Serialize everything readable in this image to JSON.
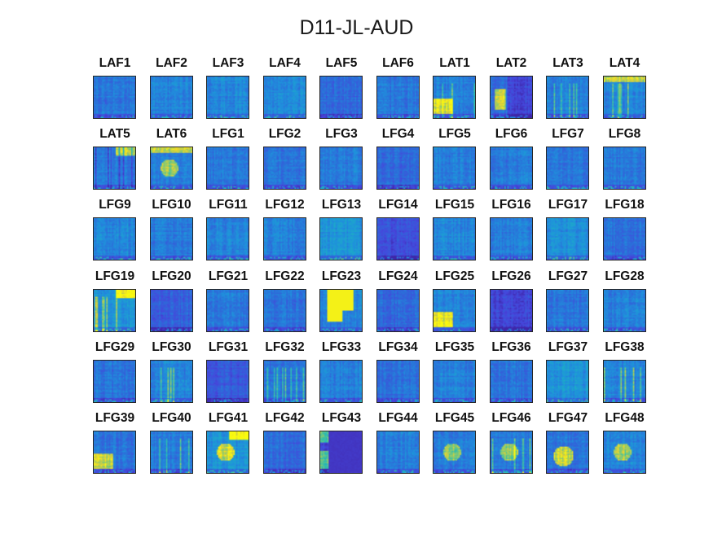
{
  "chart_data": {
    "type": "heatmap",
    "title": "D11-JL-AUD",
    "layout": {
      "rows": 6,
      "cols": 10
    },
    "colormap": "parula",
    "colors": {
      "low": "#3e26a8",
      "mid_low": "#2d6bd9",
      "mid": "#1fa0d8",
      "mid_high": "#3cc0a4",
      "high": "#f9fb0e"
    },
    "panels": [
      {
        "label": "LAF1",
        "intensity": 0.35,
        "features": []
      },
      {
        "label": "LAF2",
        "intensity": 0.4,
        "features": []
      },
      {
        "label": "LAF3",
        "intensity": 0.42,
        "features": []
      },
      {
        "label": "LAF4",
        "intensity": 0.42,
        "features": []
      },
      {
        "label": "LAF5",
        "intensity": 0.3,
        "features": []
      },
      {
        "label": "LAF6",
        "intensity": 0.35,
        "features": []
      },
      {
        "label": "LAT1",
        "intensity": 0.38,
        "features": [
          "bright-bottom-left",
          "bright-stripes"
        ]
      },
      {
        "label": "LAT2",
        "intensity": 0.3,
        "features": [
          "bright-left-block",
          "dark-right"
        ]
      },
      {
        "label": "LAT3",
        "intensity": 0.38,
        "features": [
          "bright-stripes"
        ]
      },
      {
        "label": "LAT4",
        "intensity": 0.4,
        "features": [
          "bright-stripes",
          "bright-top"
        ]
      },
      {
        "label": "LAT5",
        "intensity": 0.36,
        "features": [
          "bright-top-right",
          "dark-stripes"
        ]
      },
      {
        "label": "LAT6",
        "intensity": 0.38,
        "features": [
          "bright-top",
          "bright-center"
        ]
      },
      {
        "label": "LFG1",
        "intensity": 0.36,
        "features": []
      },
      {
        "label": "LFG2",
        "intensity": 0.34,
        "features": []
      },
      {
        "label": "LFG3",
        "intensity": 0.38,
        "features": []
      },
      {
        "label": "LFG4",
        "intensity": 0.3,
        "features": []
      },
      {
        "label": "LFG5",
        "intensity": 0.38,
        "features": []
      },
      {
        "label": "LFG6",
        "intensity": 0.36,
        "features": []
      },
      {
        "label": "LFG7",
        "intensity": 0.36,
        "features": []
      },
      {
        "label": "LFG8",
        "intensity": 0.36,
        "features": []
      },
      {
        "label": "LFG9",
        "intensity": 0.4,
        "features": []
      },
      {
        "label": "LFG10",
        "intensity": 0.36,
        "features": []
      },
      {
        "label": "LFG11",
        "intensity": 0.4,
        "features": []
      },
      {
        "label": "LFG12",
        "intensity": 0.38,
        "features": []
      },
      {
        "label": "LFG13",
        "intensity": 0.46,
        "features": []
      },
      {
        "label": "LFG14",
        "intensity": 0.18,
        "features": []
      },
      {
        "label": "LFG15",
        "intensity": 0.42,
        "features": []
      },
      {
        "label": "LFG16",
        "intensity": 0.38,
        "features": []
      },
      {
        "label": "LFG17",
        "intensity": 0.44,
        "features": []
      },
      {
        "label": "LFG18",
        "intensity": 0.32,
        "features": []
      },
      {
        "label": "LFG19",
        "intensity": 0.48,
        "features": [
          "bright-top-right",
          "bright-stripes"
        ]
      },
      {
        "label": "LFG20",
        "intensity": 0.26,
        "features": []
      },
      {
        "label": "LFG21",
        "intensity": 0.36,
        "features": []
      },
      {
        "label": "LFG22",
        "intensity": 0.34,
        "features": []
      },
      {
        "label": "LFG23",
        "intensity": 0.4,
        "features": [
          "bright-big-blob"
        ]
      },
      {
        "label": "LFG24",
        "intensity": 0.3,
        "features": []
      },
      {
        "label": "LFG25",
        "intensity": 0.4,
        "features": [
          "bright-bottom-left"
        ]
      },
      {
        "label": "LFG26",
        "intensity": 0.14,
        "features": []
      },
      {
        "label": "LFG27",
        "intensity": 0.34,
        "features": []
      },
      {
        "label": "LFG28",
        "intensity": 0.38,
        "features": []
      },
      {
        "label": "LFG29",
        "intensity": 0.34,
        "features": []
      },
      {
        "label": "LFG30",
        "intensity": 0.4,
        "features": [
          "bright-stripes"
        ]
      },
      {
        "label": "LFG31",
        "intensity": 0.22,
        "features": []
      },
      {
        "label": "LFG32",
        "intensity": 0.34,
        "features": [
          "bright-stripes"
        ]
      },
      {
        "label": "LFG33",
        "intensity": 0.38,
        "features": []
      },
      {
        "label": "LFG34",
        "intensity": 0.32,
        "features": []
      },
      {
        "label": "LFG35",
        "intensity": 0.38,
        "features": []
      },
      {
        "label": "LFG36",
        "intensity": 0.34,
        "features": []
      },
      {
        "label": "LFG37",
        "intensity": 0.46,
        "features": []
      },
      {
        "label": "LFG38",
        "intensity": 0.4,
        "features": [
          "bright-stripes"
        ]
      },
      {
        "label": "LFG39",
        "intensity": 0.34,
        "features": [
          "bright-bottom-left"
        ]
      },
      {
        "label": "LFG40",
        "intensity": 0.36,
        "features": [
          "bright-stripes"
        ]
      },
      {
        "label": "LFG41",
        "intensity": 0.46,
        "features": [
          "bright-top-right",
          "bright-center"
        ]
      },
      {
        "label": "LFG42",
        "intensity": 0.3,
        "features": []
      },
      {
        "label": "LFG43",
        "intensity": 0.12,
        "features": [
          "dark-block",
          "bright-left-edge"
        ]
      },
      {
        "label": "LFG44",
        "intensity": 0.38,
        "features": []
      },
      {
        "label": "LFG45",
        "intensity": 0.38,
        "features": [
          "bright-center"
        ]
      },
      {
        "label": "LFG46",
        "intensity": 0.36,
        "features": [
          "bright-stripes",
          "bright-center"
        ]
      },
      {
        "label": "LFG47",
        "intensity": 0.34,
        "features": [
          "bright-center-low"
        ]
      },
      {
        "label": "LFG48",
        "intensity": 0.4,
        "features": [
          "bright-center"
        ]
      }
    ]
  }
}
